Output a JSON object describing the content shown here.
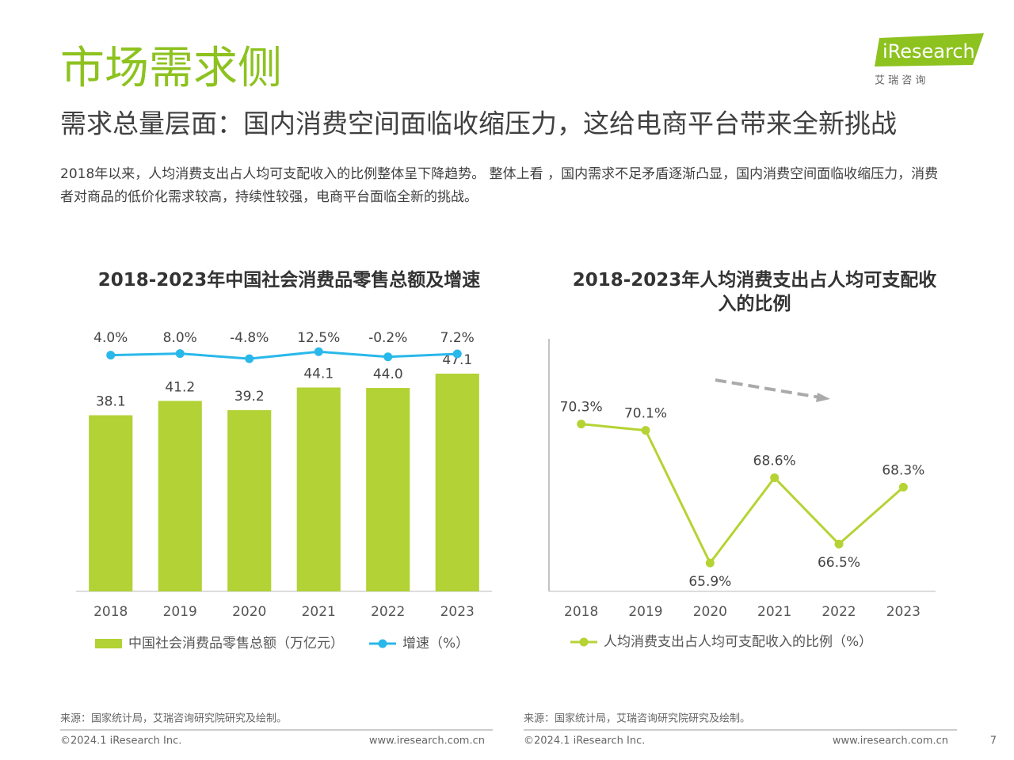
{
  "header": {
    "title": "市场需求侧",
    "subtitle": "需求总量层面：国内消费空间面临收缩压力，这给电商平台带来全新挑战",
    "body": "2018年以来，人均消费支出占人均可支配收入的比例整体呈下降趋势。 整体上看 ，国内需求不足矛盾逐渐凸显，国内消费空间面临收缩压力，消费者对商品的低价化需求较高，持续性较强，电商平台面临全新的挑战。",
    "logo": "iResearch",
    "logo_sub": "艾 瑞 咨 询"
  },
  "chart_data": [
    {
      "type": "bar",
      "title": "2018-2023年中国社会消费品零售总额及增速",
      "categories": [
        "2018",
        "2019",
        "2020",
        "2021",
        "2022",
        "2023"
      ],
      "series": [
        {
          "name": "中国社会消费品零售总额（万亿元）",
          "color": "#b2d235",
          "values": [
            38.1,
            41.2,
            39.2,
            44.1,
            44.0,
            47.1
          ],
          "value_labels": [
            "38.1",
            "41.2",
            "39.2",
            "44.1",
            "44.0",
            "47.1"
          ]
        },
        {
          "name": "增速（%）",
          "type": "line",
          "axis": "y2",
          "color": "#29b8ea",
          "values": [
            4.0,
            8.0,
            -4.8,
            12.5,
            -0.2,
            7.2
          ],
          "value_labels": [
            "4.0%",
            "8.0%",
            "-4.8%",
            "12.5%",
            "-0.2%",
            "7.2%"
          ]
        }
      ],
      "ylim": [
        0,
        56
      ],
      "y2lim": [
        -580,
        60
      ],
      "source": "来源：国家统计局，艾瑞咨询研究院研究及绘制。"
    },
    {
      "type": "line",
      "title": "2018-2023年人均消费支出占人均可支配收入的比例",
      "categories": [
        "2018",
        "2019",
        "2020",
        "2021",
        "2022",
        "2023"
      ],
      "series": [
        {
          "name": "人均消费支出占人均可支配收入的比例（%）",
          "color": "#b5d334",
          "values": [
            70.3,
            70.1,
            65.9,
            68.6,
            66.5,
            68.3
          ],
          "value_labels": [
            "70.3%",
            "70.1%",
            "65.9%",
            "68.6%",
            "66.5%",
            "68.3%"
          ]
        }
      ],
      "ylim": [
        65,
        73
      ],
      "source": "来源：国家统计局，艾瑞咨询研究院研究及绘制。"
    }
  ],
  "footer": {
    "copyright": "©2024.1 iResearch Inc.",
    "website": "www.iresearch.com.cn",
    "page": "7"
  }
}
